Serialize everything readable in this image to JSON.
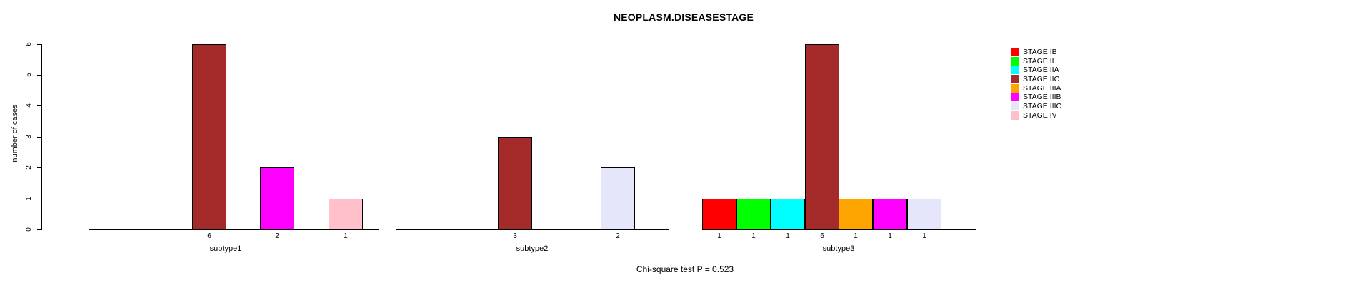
{
  "title": "NEOPLASM.DISEASESTAGE",
  "caption": "Chi-square test P = 0.523",
  "y_axis": {
    "label": "number of cases",
    "ticks": [
      0,
      1,
      2,
      3,
      4,
      5,
      6
    ]
  },
  "legend": {
    "position": "right",
    "entries": [
      {
        "label": "STAGE IB",
        "color": "#FF0000"
      },
      {
        "label": "STAGE II",
        "color": "#00FF00"
      },
      {
        "label": "STAGE IIA",
        "color": "#00FFFF"
      },
      {
        "label": "STAGE IIC",
        "color": "#A52A2A"
      },
      {
        "label": "STAGE IIIA",
        "color": "#FFA500"
      },
      {
        "label": "STAGE IIIB",
        "color": "#FF00FF"
      },
      {
        "label": "STAGE IIIC",
        "color": "#E6E6FA"
      },
      {
        "label": "STAGE IV",
        "color": "#FFC0CB"
      }
    ]
  },
  "chart_data": {
    "type": "bar",
    "title": "NEOPLASM.DISEASESTAGE",
    "xlabel": "",
    "ylabel": "number of cases",
    "ylim": [
      0,
      6
    ],
    "yticks": [
      0,
      1,
      2,
      3,
      4,
      5,
      6
    ],
    "grid": false,
    "legend_position": "right",
    "annotation": "Chi-square test P = 0.523",
    "stage_order": [
      "STAGE IB",
      "STAGE II",
      "STAGE IIA",
      "STAGE IIC",
      "STAGE IIIA",
      "STAGE IIIB",
      "STAGE IIIC",
      "STAGE IV"
    ],
    "stage_colors": {
      "STAGE IB": "#FF0000",
      "STAGE II": "#00FF00",
      "STAGE IIA": "#00FFFF",
      "STAGE IIC": "#A52A2A",
      "STAGE IIIA": "#FFA500",
      "STAGE IIIB": "#FF00FF",
      "STAGE IIIC": "#E6E6FA",
      "STAGE IV": "#FFC0CB"
    },
    "categories": [
      "subtype1",
      "subtype2",
      "subtype3"
    ],
    "groups": [
      {
        "label": "subtype1",
        "bars": [
          {
            "stage": "STAGE IIC",
            "value": 6
          },
          {
            "stage": "STAGE IIIB",
            "value": 2
          },
          {
            "stage": "STAGE IV",
            "value": 1
          }
        ]
      },
      {
        "label": "subtype2",
        "bars": [
          {
            "stage": "STAGE IIC",
            "value": 3
          },
          {
            "stage": "STAGE IIIC",
            "value": 2
          }
        ]
      },
      {
        "label": "subtype3",
        "bars": [
          {
            "stage": "STAGE IB",
            "value": 1
          },
          {
            "stage": "STAGE II",
            "value": 1
          },
          {
            "stage": "STAGE IIA",
            "value": 1
          },
          {
            "stage": "STAGE IIC",
            "value": 6
          },
          {
            "stage": "STAGE IIIA",
            "value": 1
          },
          {
            "stage": "STAGE IIIB",
            "value": 1
          },
          {
            "stage": "STAGE IIIC",
            "value": 1
          }
        ]
      }
    ]
  }
}
